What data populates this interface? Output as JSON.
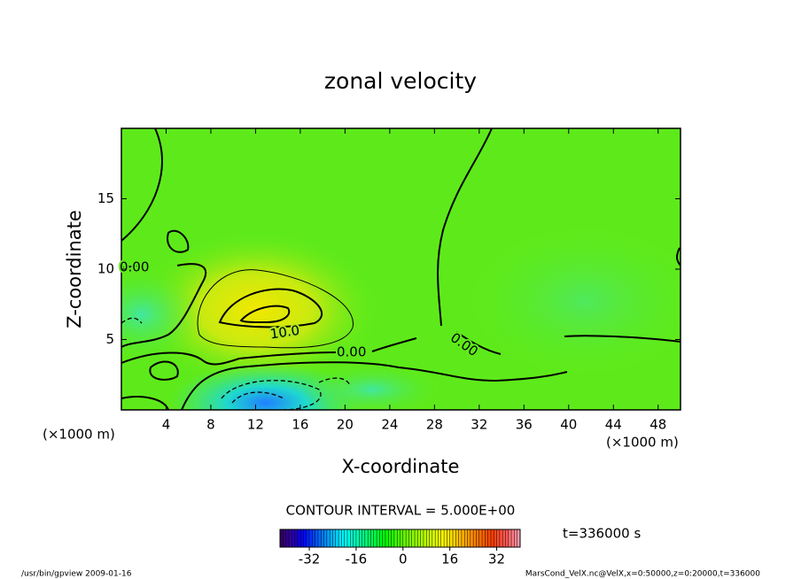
{
  "chart_data": {
    "type": "contour",
    "title": "zonal velocity",
    "xlabel": "X-coordinate",
    "ylabel": "Z-coordinate",
    "x_unit_labels": [
      "(×1000 m)",
      "(×1000 m)"
    ],
    "xlim": [
      0,
      50
    ],
    "xticks": [
      4,
      8,
      12,
      16,
      20,
      24,
      28,
      32,
      36,
      40,
      44,
      48
    ],
    "ylim": [
      0,
      20
    ],
    "yticks": [
      5,
      10,
      15
    ],
    "contour_labels": [
      {
        "value": 0,
        "label": "0.00"
      },
      {
        "value": 10,
        "label": "10.0"
      },
      {
        "value": 0,
        "label": "0.00"
      },
      {
        "value": 0,
        "label": "0.00"
      }
    ],
    "contour_interval": "CONTOUR INTERVAL = 5.000E+00",
    "time_label": "t=336000 s",
    "colorbar": {
      "lim": [
        -42,
        40
      ],
      "ticks": [
        -32,
        -16,
        0,
        16,
        32
      ]
    },
    "footer_left": "/usr/bin/gpview  2009-01-16",
    "footer_right": "MarsCond_VelX.nc@VelX,x=0:50000,z=0:20000,t=336000"
  }
}
